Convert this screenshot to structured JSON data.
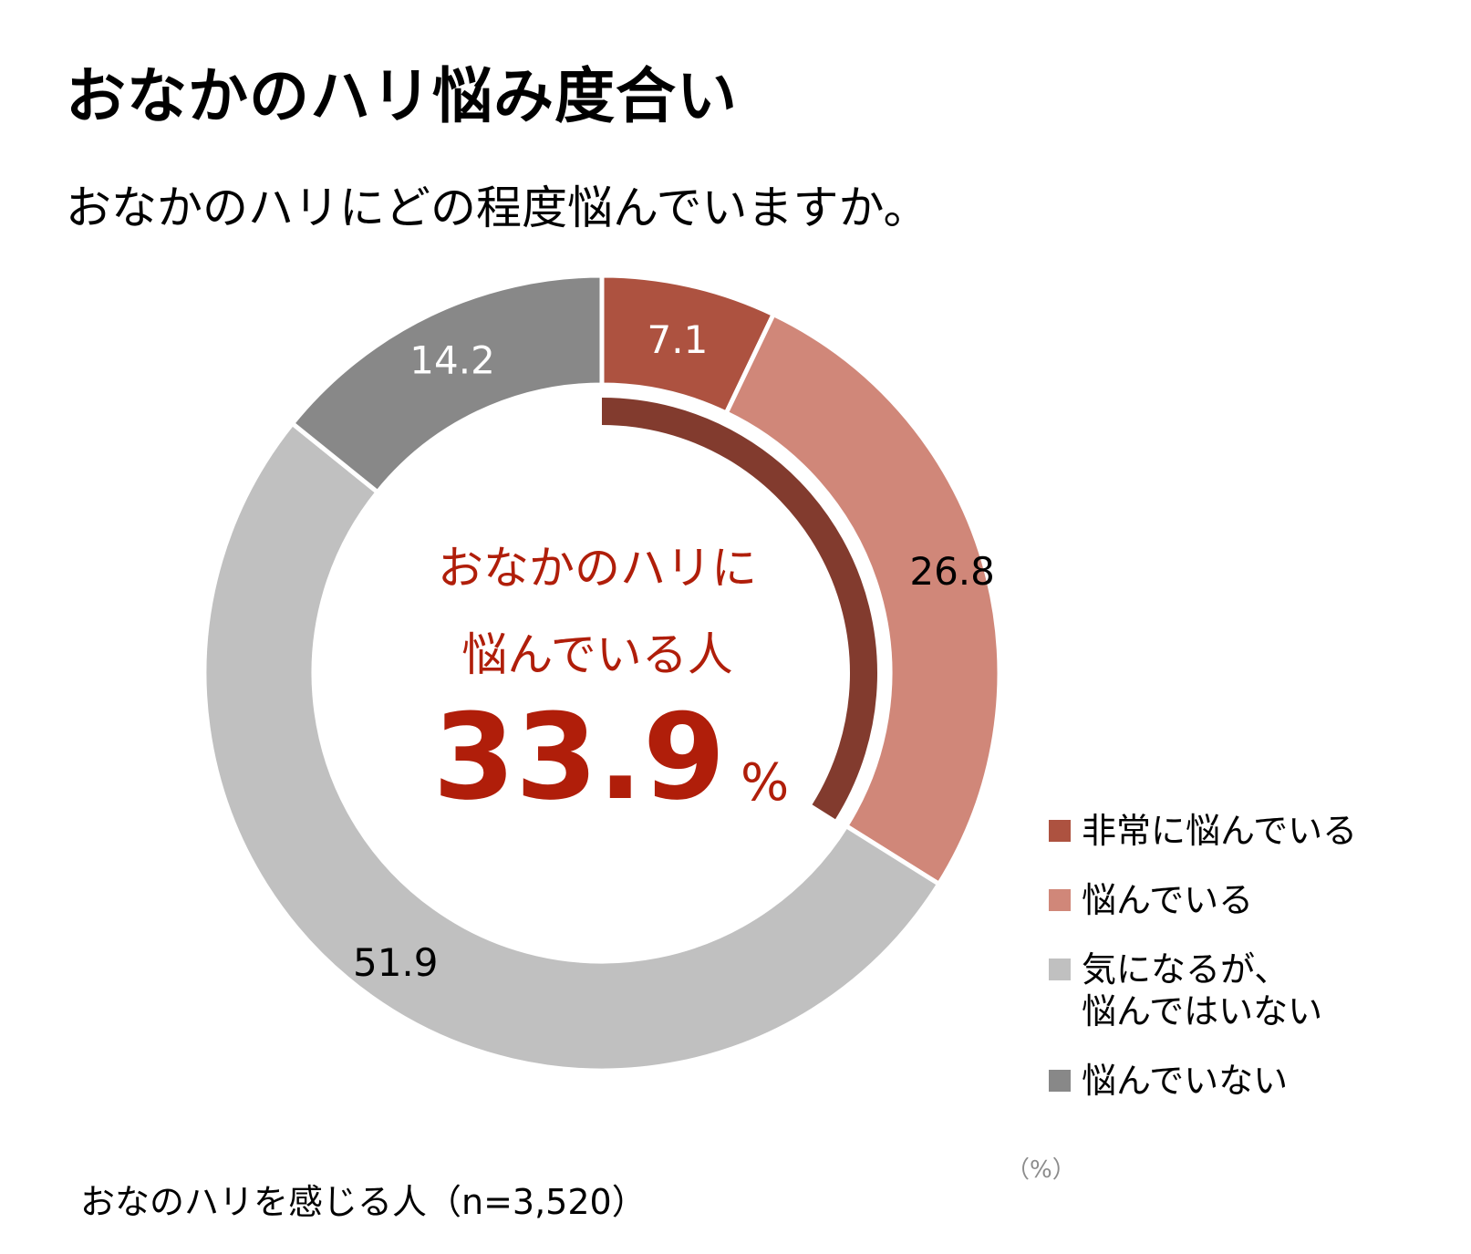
{
  "chart_data": {
    "type": "pie",
    "title": "おなかのハリ悩み度合い",
    "subtitle": "おなかのハリにどの程度悩んでいますか。",
    "series": [
      {
        "name": "非常に悩んでいる",
        "value": 7.1,
        "label": "7.1",
        "color": "#ad5240"
      },
      {
        "name": "悩んでいる",
        "value": 26.8,
        "label": "26.8",
        "color": "#d08779"
      },
      {
        "name": "気になるが、\n悩んではいない",
        "value": 51.9,
        "label": "51.9",
        "color": "#c0c0c0"
      },
      {
        "name": "悩んでいない",
        "value": 14.2,
        "label": "14.2",
        "color": "#888888"
      }
    ],
    "highlight": {
      "caption_line1": "おなかのハリに",
      "caption_line2": "悩んでいる人",
      "value": "33.9",
      "unit": "%",
      "arc_color": "#823b2e",
      "text_color": "#b01e0a"
    },
    "unit_note": "（%）",
    "legend_position": "right",
    "footnote": "おなのハリを感じる人（n=3,520）"
  }
}
